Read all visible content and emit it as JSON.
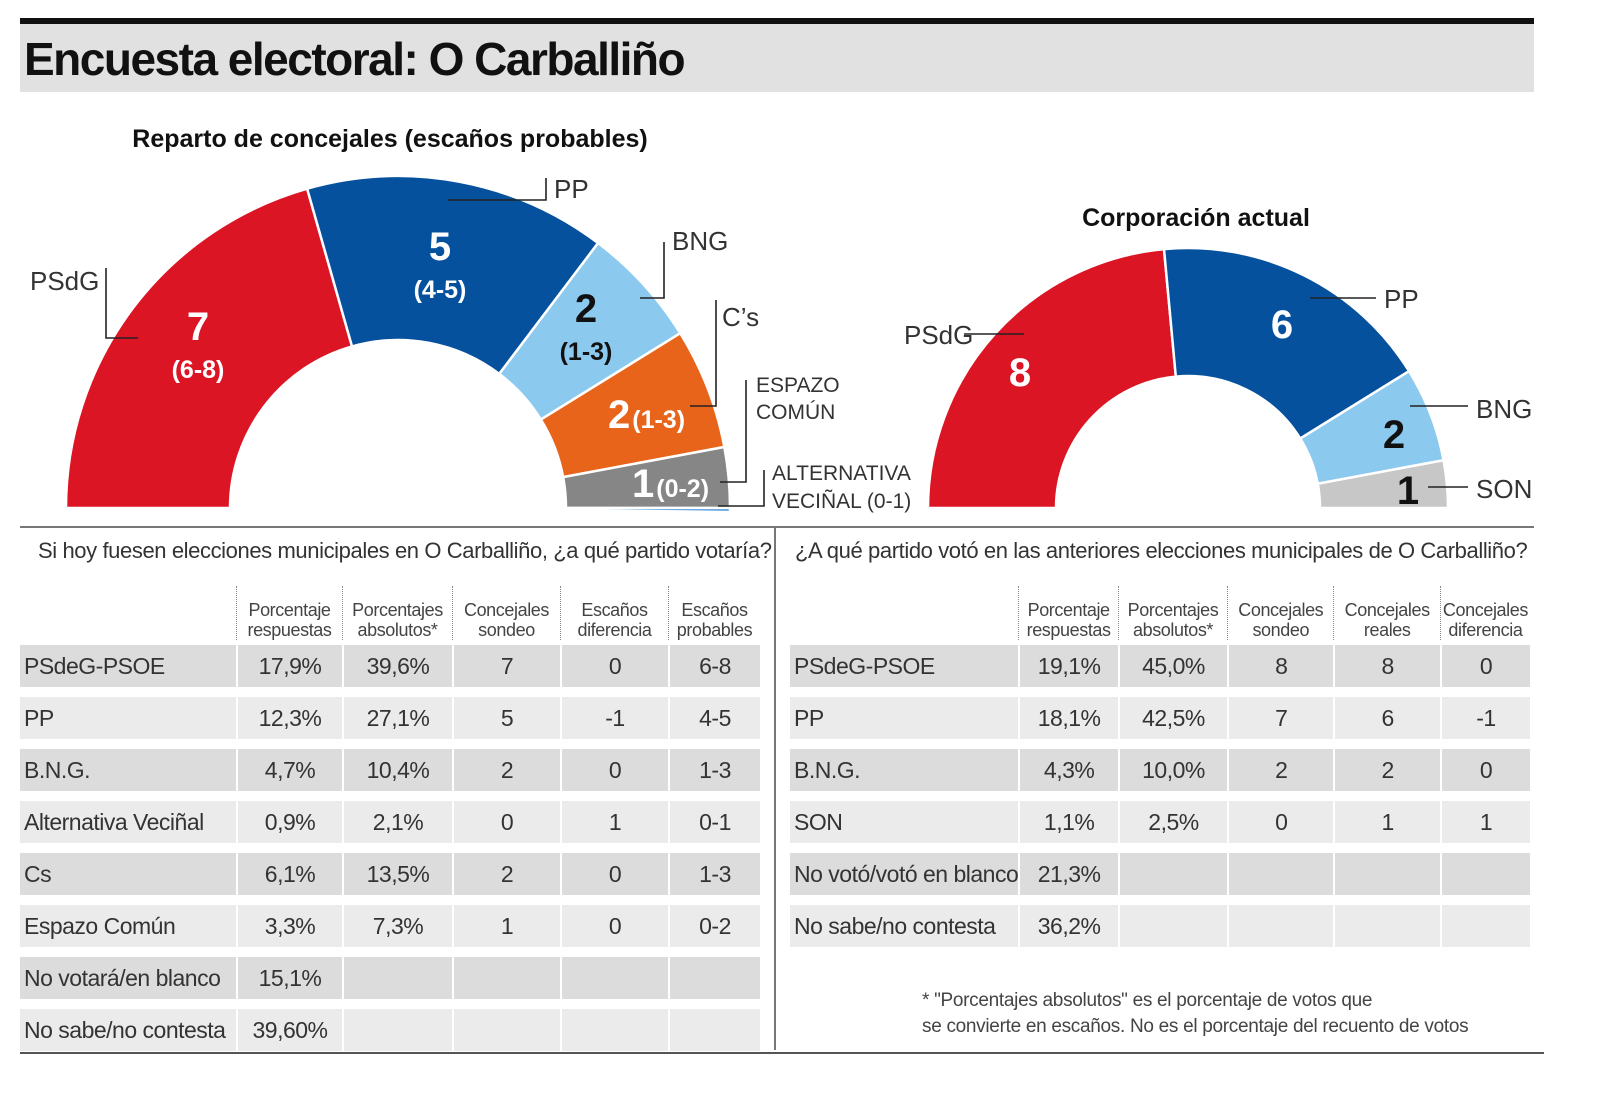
{
  "title": "Encuesta electoral: O Carballiño",
  "chart_data": [
    {
      "type": "pie",
      "title": "Reparto de concejales (escaños probables)",
      "series": [
        {
          "name": "PSdG",
          "seats": 7,
          "range": "(6-8)",
          "color": "#dc1524"
        },
        {
          "name": "PP",
          "seats": 5,
          "range": "(4-5)",
          "color": "#06519e"
        },
        {
          "name": "BNG",
          "seats": 2,
          "range": "(1-3)",
          "color": "#8cc9ef"
        },
        {
          "name": "C’s",
          "seats": 2,
          "range": "(1-3)",
          "color": "#e8641a"
        },
        {
          "name": "ESPAZO COMÚN",
          "seats": 1,
          "range": "(0-2)",
          "color": "#868686"
        },
        {
          "name": "ALTERNATIVA VECIÑAL (0-1)",
          "seats": 0,
          "range": "",
          "color": "#3a8fd8"
        }
      ]
    },
    {
      "type": "pie",
      "title": "Corporación actual",
      "series": [
        {
          "name": "PSdG",
          "seats": 8,
          "color": "#dc1524"
        },
        {
          "name": "PP",
          "seats": 6,
          "color": "#06519e"
        },
        {
          "name": "BNG",
          "seats": 2,
          "color": "#8cc9ef"
        },
        {
          "name": "SON",
          "seats": 1,
          "color": "#c7c7c7"
        }
      ]
    }
  ],
  "left_table": {
    "question": "Si hoy fuesen elecciones municipales en O Carballiño, ¿a qué partido votaría?",
    "headers": [
      [
        "Porcentaje",
        "respuestas"
      ],
      [
        "Porcentajes",
        "absolutos*"
      ],
      [
        "Concejales",
        "sondeo"
      ],
      [
        "Escaños",
        "diferencia"
      ],
      [
        "Escaños",
        "probables"
      ]
    ],
    "rows": [
      [
        "PSdeG-PSOE",
        "17,9%",
        "39,6%",
        "7",
        "0",
        "6-8"
      ],
      [
        "PP",
        "12,3%",
        "27,1%",
        "5",
        "-1",
        "4-5"
      ],
      [
        "B.N.G.",
        "4,7%",
        "10,4%",
        "2",
        "0",
        "1-3"
      ],
      [
        "Alternativa Veciñal",
        "0,9%",
        "2,1%",
        "0",
        "1",
        "0-1"
      ],
      [
        "Cs",
        "6,1%",
        "13,5%",
        "2",
        "0",
        "1-3"
      ],
      [
        "Espazo Común",
        "3,3%",
        "7,3%",
        "1",
        "0",
        "0-2"
      ],
      [
        "No votará/en blanco",
        "15,1%",
        "",
        "",
        "",
        ""
      ],
      [
        "No sabe/no contesta",
        "39,60%",
        "",
        "",
        "",
        ""
      ]
    ]
  },
  "right_table": {
    "question": "¿A qué partido votó en las anteriores elecciones municipales de O Carballiño?",
    "headers": [
      [
        "Porcentaje",
        "respuestas"
      ],
      [
        "Porcentajes",
        "absolutos*"
      ],
      [
        "Concejales",
        "sondeo"
      ],
      [
        "Concejales",
        "reales"
      ],
      [
        "Concejales",
        "diferencia"
      ]
    ],
    "rows": [
      [
        "PSdeG-PSOE",
        "19,1%",
        "45,0%",
        "8",
        "8",
        "0"
      ],
      [
        "PP",
        "18,1%",
        "42,5%",
        "7",
        "6",
        "-1"
      ],
      [
        "B.N.G.",
        "4,3%",
        "10,0%",
        "2",
        "2",
        "0"
      ],
      [
        "SON",
        "1,1%",
        "2,5%",
        "0",
        "1",
        "1"
      ],
      [
        "No votó/votó en blanco",
        "21,3%",
        "",
        "",
        "",
        ""
      ],
      [
        "No sabe/no contesta",
        "36,2%",
        "",
        "",
        "",
        ""
      ]
    ]
  },
  "note": {
    "line1": "* \"Porcentajes absolutos\" es el porcentaje de votos que",
    "line2": "se convierte en escaños. No es el porcentaje del recuento de votos"
  }
}
